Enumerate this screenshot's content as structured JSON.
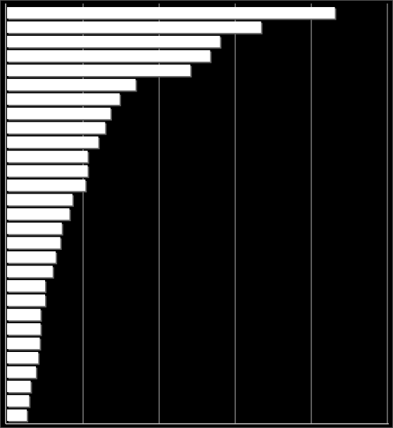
{
  "chart_data": {
    "type": "barh",
    "categories": [
      null,
      null,
      null,
      null,
      null,
      null,
      null,
      null,
      null,
      null,
      null,
      null,
      null,
      null,
      null,
      null,
      null,
      null,
      null,
      null,
      null,
      null,
      null,
      null,
      null,
      null,
      null,
      null,
      null
    ],
    "values": [
      4.31,
      3.34,
      2.8,
      2.67,
      2.41,
      1.69,
      1.48,
      1.36,
      1.29,
      1.2,
      1.06,
      1.06,
      1.03,
      0.86,
      0.82,
      0.72,
      0.7,
      0.64,
      0.6,
      0.5,
      0.5,
      0.44,
      0.44,
      0.43,
      0.41,
      0.38,
      0.31,
      0.29,
      0.26
    ],
    "color": "#ffffff",
    "xlim": [
      0,
      5
    ],
    "xticks": [
      1,
      2,
      3,
      4,
      5
    ],
    "grid": true
  }
}
